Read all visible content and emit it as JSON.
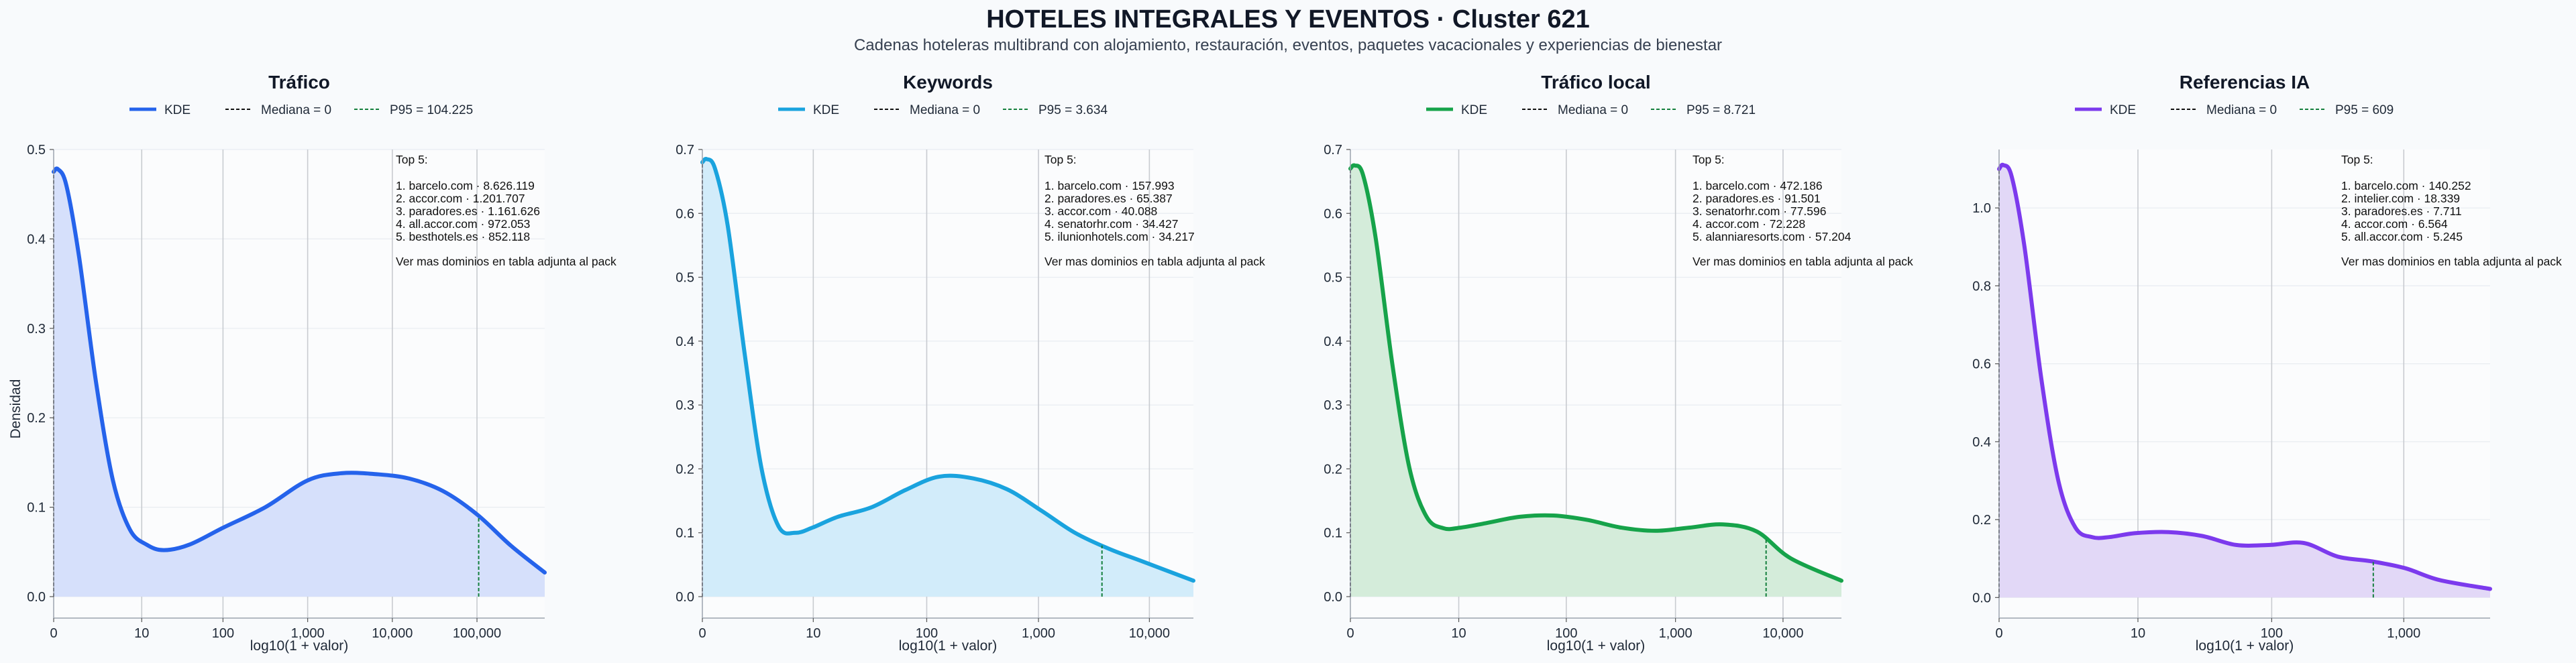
{
  "title": "HOTELES INTEGRALES Y EVENTOS · Cluster 621",
  "subtitle": "Cadenas hoteleras multibrand con alojamiento, restauración, eventos, paquetes vacacionales y experiencias de bienestar",
  "ylabel": "Densidad",
  "chart_data": [
    {
      "type": "area",
      "title": "Tráfico",
      "color": "#2563eb",
      "fill": "#d6e0fb",
      "xlabel": "log10(1 + valor)",
      "xlim": [
        0,
        5.8
      ],
      "ylim": [
        -0.024,
        0.5
      ],
      "yticks": [
        0.0,
        0.1,
        0.2,
        0.3,
        0.4,
        0.5
      ],
      "ytick_labels": [
        "0.0",
        "0.1",
        "0.2",
        "0.3",
        "0.4",
        "0.5"
      ],
      "xticks": [
        0,
        1.04,
        2.0,
        3.0,
        4.0,
        5.0
      ],
      "xtick_labels": [
        "0",
        "10",
        "100",
        "1,000",
        "10,000",
        "100,000"
      ],
      "legend": {
        "kde": "KDE",
        "median": "Mediana = 0",
        "p95": "P95 = 104.225"
      },
      "p95_x": 5.02,
      "kde": {
        "x": [
          0,
          0.05,
          0.15,
          0.3,
          0.5,
          0.7,
          0.9,
          1.1,
          1.3,
          1.6,
          2.0,
          2.5,
          3.0,
          3.4,
          3.8,
          4.2,
          4.6,
          5.0,
          5.4,
          5.8
        ],
        "y": [
          0.475,
          0.478,
          0.46,
          0.38,
          0.24,
          0.13,
          0.075,
          0.058,
          0.052,
          0.058,
          0.077,
          0.1,
          0.13,
          0.138,
          0.137,
          0.132,
          0.118,
          0.092,
          0.057,
          0.027
        ]
      },
      "top5": {
        "header": "Top 5:",
        "items": [
          "1. barcelo.com · 8.626.119",
          "2. accor.com · 1.201.707",
          "3. paradores.es · 1.161.626",
          "4. all.accor.com · 972.053",
          "5. besthotels.es · 852.118"
        ],
        "footer": "Ver mas dominios en tabla adjunta al pack"
      }
    },
    {
      "type": "area",
      "title": "Keywords",
      "color": "#1aa3de",
      "fill": "#d2ecfa",
      "xlabel": "log10(1 + valor)",
      "xlim": [
        0,
        5.8
      ],
      "ylim": [
        -0.0336,
        0.7
      ],
      "yticks": [
        0.0,
        0.1,
        0.2,
        0.3,
        0.4,
        0.5,
        0.6,
        0.7
      ],
      "ytick_labels": [
        "0.0",
        "0.1",
        "0.2",
        "0.3",
        "0.4",
        "0.5",
        "0.6",
        "0.7"
      ],
      "xticks": [
        0,
        1.31,
        2.65,
        3.97,
        5.28
      ],
      "xtick_labels": [
        "0",
        "10",
        "100",
        "1,000",
        "10,000"
      ],
      "legend": {
        "kde": "KDE",
        "median": "Mediana = 0",
        "p95": "P95 = 3.634"
      },
      "p95_x": 4.72,
      "kde": {
        "x": [
          0,
          0.05,
          0.15,
          0.3,
          0.5,
          0.7,
          0.9,
          1.1,
          1.3,
          1.6,
          2.0,
          2.4,
          2.8,
          3.2,
          3.6,
          4.0,
          4.4,
          4.8,
          5.2,
          5.8
        ],
        "y": [
          0.68,
          0.685,
          0.67,
          0.58,
          0.38,
          0.2,
          0.11,
          0.1,
          0.108,
          0.125,
          0.14,
          0.167,
          0.188,
          0.185,
          0.168,
          0.135,
          0.1,
          0.075,
          0.055,
          0.025
        ]
      },
      "top5": {
        "header": "Top 5:",
        "items": [
          "1. barcelo.com · 157.993",
          "2. paradores.es · 65.387",
          "3. accor.com · 40.088",
          "4. senatorhr.com · 34.427",
          "5. ilunionhotels.com · 34.217"
        ],
        "footer": "Ver mas dominios en tabla adjunta al pack"
      }
    },
    {
      "type": "area",
      "title": "Tráfico local",
      "color": "#16a34a",
      "fill": "#d4ecda",
      "xlabel": "log10(1 + valor)",
      "xlim": [
        0,
        5.8
      ],
      "ylim": [
        -0.0336,
        0.7
      ],
      "yticks": [
        0.0,
        0.1,
        0.2,
        0.3,
        0.4,
        0.5,
        0.6,
        0.7
      ],
      "ytick_labels": [
        "0.0",
        "0.1",
        "0.2",
        "0.3",
        "0.4",
        "0.5",
        "0.6",
        "0.7"
      ],
      "xticks": [
        0,
        1.28,
        2.55,
        3.84,
        5.11
      ],
      "xtick_labels": [
        "0",
        "10",
        "100",
        "1,000",
        "10,000"
      ],
      "legend": {
        "kde": "KDE",
        "median": "Mediana = 0",
        "p95": "P95 = 8.721"
      },
      "p95_x": 4.91,
      "kde": {
        "x": [
          0,
          0.05,
          0.15,
          0.3,
          0.5,
          0.7,
          0.9,
          1.1,
          1.3,
          1.6,
          2.0,
          2.4,
          2.8,
          3.2,
          3.6,
          4.0,
          4.4,
          4.8,
          5.2,
          5.8
        ],
        "y": [
          0.67,
          0.675,
          0.66,
          0.56,
          0.36,
          0.2,
          0.125,
          0.107,
          0.108,
          0.115,
          0.125,
          0.127,
          0.12,
          0.108,
          0.103,
          0.108,
          0.113,
          0.102,
          0.06,
          0.025
        ]
      },
      "top5": {
        "header": "Top 5:",
        "items": [
          "1. barcelo.com · 472.186",
          "2. paradores.es · 91.501",
          "3. senatorhr.com · 77.596",
          "4. accor.com · 72.228",
          "5. alanniaresorts.com · 57.204"
        ],
        "footer": "Ver mas dominios en tabla adjunta al pack"
      }
    },
    {
      "type": "area",
      "title": "Referencias IA",
      "color": "#7c3aed",
      "fill": "#e2d8f7",
      "xlabel": "log10(1 + valor)",
      "xlim": [
        0,
        5.8
      ],
      "ylim": [
        -0.0528,
        1.15
      ],
      "yticks": [
        0.0,
        0.2,
        0.4,
        0.6,
        0.8,
        1.0
      ],
      "ytick_labels": [
        "0.0",
        "0.2",
        "0.4",
        "0.6",
        "0.8",
        "1.0"
      ],
      "xticks": [
        0,
        1.64,
        3.22,
        4.78
      ],
      "xtick_labels": [
        "0",
        "10",
        "100",
        "1,000"
      ],
      "legend": {
        "kde": "KDE",
        "median": "Mediana = 0",
        "p95": "P95 = 609"
      },
      "p95_x": 4.42,
      "kde": {
        "x": [
          0,
          0.05,
          0.15,
          0.3,
          0.5,
          0.7,
          0.9,
          1.1,
          1.3,
          1.6,
          2.0,
          2.4,
          2.8,
          3.2,
          3.6,
          4.0,
          4.4,
          4.8,
          5.2,
          5.8
        ],
        "y": [
          1.1,
          1.11,
          1.08,
          0.9,
          0.56,
          0.3,
          0.18,
          0.155,
          0.155,
          0.165,
          0.168,
          0.158,
          0.135,
          0.135,
          0.14,
          0.105,
          0.093,
          0.075,
          0.045,
          0.022
        ]
      },
      "top5": {
        "header": "Top 5:",
        "items": [
          "1. barcelo.com · 140.252",
          "2. intelier.com · 18.339",
          "3. paradores.es · 7.711",
          "4. accor.com · 6.564",
          "5. all.accor.com · 5.245"
        ],
        "footer": "Ver mas dominios en tabla adjunta al pack"
      }
    }
  ]
}
